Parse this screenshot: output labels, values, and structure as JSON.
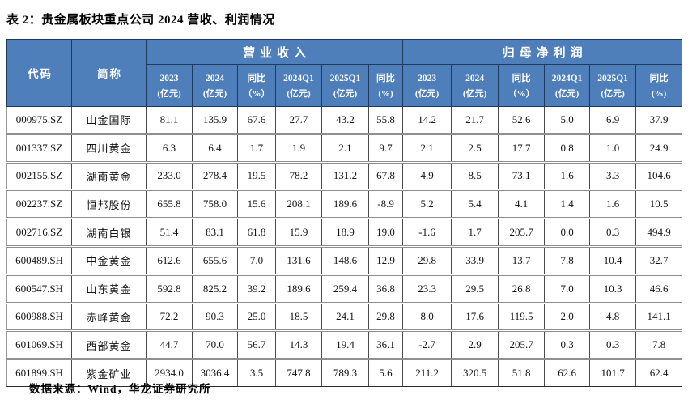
{
  "title": "表 2：贵金属板块重点公司 2024 营收、利润情况",
  "source_note": "数据来源：Wind，华龙证券研究所",
  "colors": {
    "header_bg": "#4e7fbb",
    "header_text": "#ffffff",
    "header_border": "#1f3a5f",
    "body_grid": "#4a4a4a",
    "row_separator": "#8f8f8f",
    "body_text": "#131313"
  },
  "table": {
    "corner_headers": [
      "代码",
      "简称"
    ],
    "group_headers": [
      "营业收入",
      "归母净利润"
    ],
    "sub_headers": [
      {
        "line1": "2023",
        "line2": "(亿元)"
      },
      {
        "line1": "2024",
        "line2": "(亿元)"
      },
      {
        "line1": "同比",
        "line2": "（%）"
      },
      {
        "line1": "2024Q1",
        "line2": "(亿元)"
      },
      {
        "line1": "2025Q1",
        "line2": "(亿元)"
      },
      {
        "line1": "同比",
        "line2": "(%)"
      },
      {
        "line1": "2023",
        "line2": "(亿元)"
      },
      {
        "line1": "2024",
        "line2": "(亿元)"
      },
      {
        "line1": "同比",
        "line2": "（%）"
      },
      {
        "line1": "2024Q1",
        "line2": "(亿元)"
      },
      {
        "line1": "2025Q1",
        "line2": "(亿元)"
      },
      {
        "line1": "同比",
        "line2": "(%)"
      }
    ],
    "rows": [
      {
        "code": "000975.SZ",
        "name": "山金国际",
        "values": [
          "81.1",
          "135.9",
          "67.6",
          "27.7",
          "43.2",
          "55.8",
          "14.2",
          "21.7",
          "52.6",
          "5.0",
          "6.9",
          "37.9"
        ]
      },
      {
        "code": "001337.SZ",
        "name": "四川黄金",
        "values": [
          "6.3",
          "6.4",
          "1.7",
          "1.9",
          "2.1",
          "9.7",
          "2.1",
          "2.5",
          "17.7",
          "0.8",
          "1.0",
          "24.9"
        ]
      },
      {
        "code": "002155.SZ",
        "name": "湖南黄金",
        "values": [
          "233.0",
          "278.4",
          "19.5",
          "78.2",
          "131.2",
          "67.8",
          "4.9",
          "8.5",
          "73.1",
          "1.6",
          "3.3",
          "104.6"
        ]
      },
      {
        "code": "002237.SZ",
        "name": "恒邦股份",
        "values": [
          "655.8",
          "758.0",
          "15.6",
          "208.1",
          "189.6",
          "-8.9",
          "5.2",
          "5.4",
          "4.1",
          "1.4",
          "1.6",
          "10.5"
        ]
      },
      {
        "code": "002716.SZ",
        "name": "湖南白银",
        "values": [
          "51.4",
          "83.1",
          "61.8",
          "15.9",
          "18.9",
          "19.0",
          "-1.6",
          "1.7",
          "205.7",
          "0.0",
          "0.3",
          "494.9"
        ]
      },
      {
        "code": "600489.SH",
        "name": "中金黄金",
        "values": [
          "612.6",
          "655.6",
          "7.0",
          "131.6",
          "148.6",
          "12.9",
          "29.8",
          "33.9",
          "13.7",
          "7.8",
          "10.4",
          "32.7"
        ]
      },
      {
        "code": "600547.SH",
        "name": "山东黄金",
        "values": [
          "592.8",
          "825.2",
          "39.2",
          "189.6",
          "259.4",
          "36.8",
          "23.3",
          "29.5",
          "26.8",
          "7.0",
          "10.3",
          "46.6"
        ]
      },
      {
        "code": "600988.SH",
        "name": "赤峰黄金",
        "values": [
          "72.2",
          "90.3",
          "25.0",
          "18.5",
          "24.1",
          "29.8",
          "8.0",
          "17.6",
          "119.5",
          "2.0",
          "4.8",
          "141.1"
        ]
      },
      {
        "code": "601069.SH",
        "name": "西部黄金",
        "values": [
          "44.7",
          "70.0",
          "56.7",
          "14.3",
          "19.4",
          "36.1",
          "-2.7",
          "2.9",
          "205.7",
          "0.3",
          "0.3",
          "7.8"
        ]
      },
      {
        "code": "601899.SH",
        "name": "紫金矿业",
        "values": [
          "2934.0",
          "3036.4",
          "3.5",
          "747.8",
          "789.3",
          "5.6",
          "211.2",
          "320.5",
          "51.8",
          "62.6",
          "101.7",
          "62.4"
        ]
      }
    ]
  }
}
